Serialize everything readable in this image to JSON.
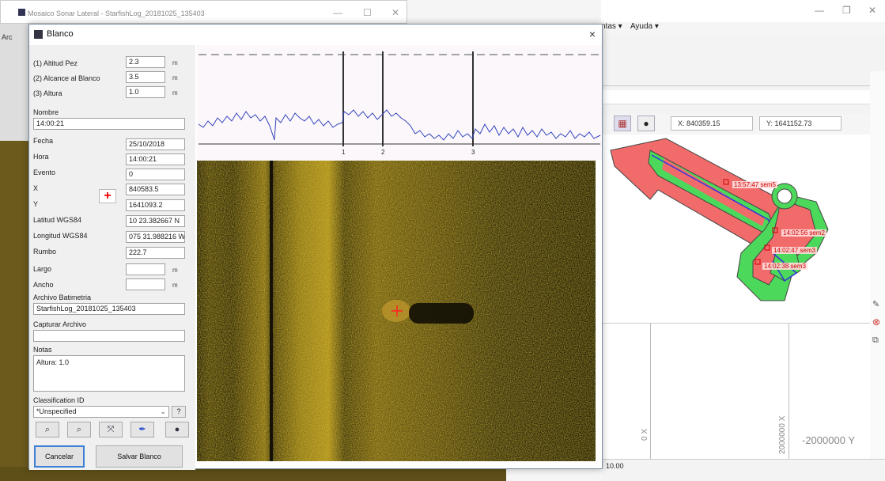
{
  "main_window": {
    "title": "Mosaico Sonar Lateral - StarfishLog_20181025_135403",
    "menu_fragment": "Arc"
  },
  "bg_app": {
    "menu": [
      "ntas ▾",
      "Ayuda ▾"
    ],
    "coord_x": "X: 840359.15",
    "coord_y": "Y: 1641152.73",
    "map_labels": [
      "13:57:47 sem5",
      "14:02:56 sem2",
      "14:02:47 sem3",
      "14:02:38 sem3"
    ],
    "axis_labels": [
      "0 X",
      "2000000 X",
      "-2000000 Y"
    ],
    "status": "10.00"
  },
  "dialog": {
    "title": "Blanco",
    "close": "×",
    "fields": {
      "altitud_pez_label": "(1) Altitud Pez",
      "altitud_pez": "2.3",
      "alcance_label": "(2) Alcance al Blanco",
      "alcance": "3.5",
      "altura_label": "(3) Altura",
      "altura": "1.0",
      "unit_m": "m",
      "nombre_label": "Nombre",
      "nombre": "14:00:21",
      "fecha_label": "Fecha",
      "fecha": "25/10/2018",
      "hora_label": "Hora",
      "hora": "14:00:21",
      "evento_label": "Evento",
      "evento": "0",
      "x_label": "X",
      "x": "840583.5",
      "y_label": "Y",
      "y": "1641093.2",
      "lat_label": "Latitud WGS84",
      "lat": "10 23.382667 N",
      "lon_label": "Longitud WGS84",
      "lon": "075 31.988216 W",
      "rumbo_label": "Rumbo",
      "rumbo": "222.7",
      "largo_label": "Largo",
      "largo": "",
      "ancho_label": "Ancho",
      "ancho": "",
      "batimetria_label": "Archivo Batimetria",
      "batimetria": "StarfishLog_20181025_135403",
      "capturar_label": "Capturar Archivo",
      "capturar": "",
      "notas_label": "Notas",
      "notas": "Altura: 1.0",
      "class_label": "Classification ID",
      "class_value": "*Unspecified",
      "help": "?"
    },
    "buttons": {
      "cancel": "Cancelar",
      "save": "Salvar Blanco"
    },
    "plot_markers": [
      "1",
      "2",
      "3"
    ]
  }
}
